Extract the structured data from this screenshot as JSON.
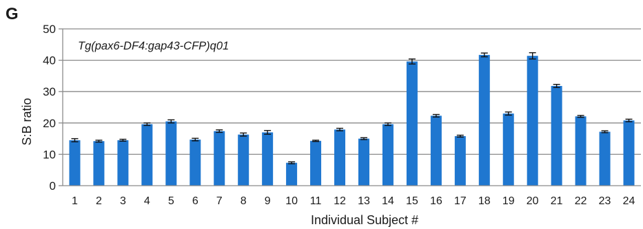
{
  "panel_label": "G",
  "chart_data": {
    "type": "bar",
    "annotation": "Tg(pax6-DF4:gap43-CFP)q01",
    "xlabel": "Individual Subject #",
    "ylabel": "S:B ratio",
    "ylim": [
      0,
      50
    ],
    "yticks": [
      0,
      10,
      20,
      30,
      40,
      50
    ],
    "grid": true,
    "bar_color": "#1f77d0",
    "categories": [
      "1",
      "2",
      "3",
      "4",
      "5",
      "6",
      "7",
      "8",
      "9",
      "10",
      "11",
      "12",
      "13",
      "14",
      "15",
      "16",
      "17",
      "18",
      "19",
      "20",
      "21",
      "22",
      "23",
      "24"
    ],
    "values": [
      14.5,
      14.2,
      14.5,
      19.6,
      20.5,
      14.7,
      17.4,
      16.3,
      17.0,
      7.3,
      14.3,
      17.9,
      15.0,
      19.6,
      39.6,
      22.3,
      15.8,
      41.7,
      23.0,
      41.4,
      31.8,
      22.1,
      17.2,
      20.8
    ],
    "errors": [
      0.5,
      0.3,
      0.3,
      0.4,
      0.5,
      0.4,
      0.4,
      0.5,
      0.6,
      0.3,
      0.2,
      0.4,
      0.3,
      0.4,
      0.8,
      0.4,
      0.3,
      0.6,
      0.5,
      1.0,
      0.5,
      0.3,
      0.3,
      0.4
    ]
  }
}
